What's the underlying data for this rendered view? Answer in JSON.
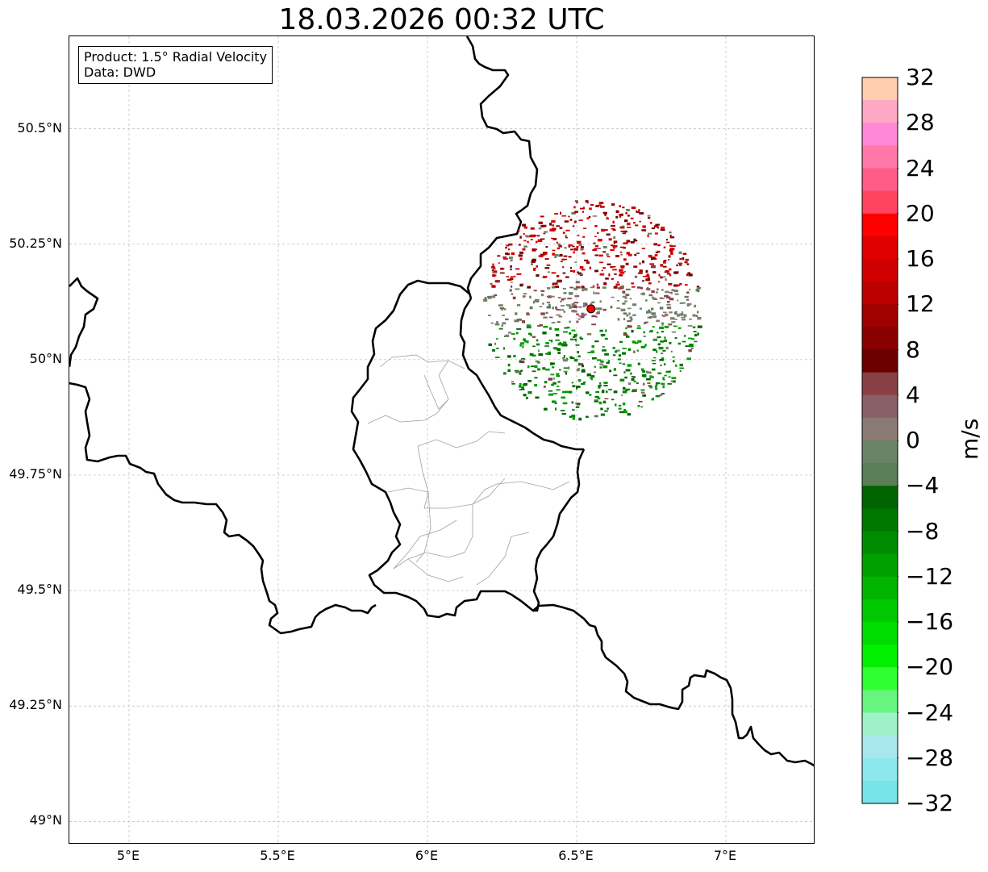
{
  "title": "18.03.2026 00:32 UTC",
  "info_box": {
    "product": "Product: 1.5° Radial Velocity",
    "source": "Data: DWD"
  },
  "map": {
    "lon_range": [
      4.8,
      7.3
    ],
    "lat_range": [
      48.95,
      50.7
    ],
    "lat_ticks": [
      {
        "value": 50.5,
        "label": "50.5°N"
      },
      {
        "value": 50.25,
        "label": "50.25°N"
      },
      {
        "value": 50.0,
        "label": "50°N"
      },
      {
        "value": 49.75,
        "label": "49.75°N"
      },
      {
        "value": 49.5,
        "label": "49.5°N"
      },
      {
        "value": 49.25,
        "label": "49.25°N"
      },
      {
        "value": 49.0,
        "label": "49°N"
      }
    ],
    "lon_ticks": [
      {
        "value": 5.0,
        "label": "5°E"
      },
      {
        "value": 5.5,
        "label": "5.5°E"
      },
      {
        "value": 6.0,
        "label": "6°E"
      },
      {
        "value": 6.5,
        "label": "6.5°E"
      },
      {
        "value": 7.0,
        "label": "7°E"
      }
    ],
    "gridlines": true,
    "radar_site": {
      "lon": 6.548,
      "lat": 50.11,
      "color": "#ff0000"
    },
    "echo_radius_deg_lat": 0.24,
    "colors": {
      "border": "#000000",
      "admin": "#a0a0a0",
      "grid": "#bbbbbb"
    }
  },
  "colorbar": {
    "label": "m/s",
    "vmin": -32,
    "vmax": 32,
    "ticks": [
      {
        "value": 32,
        "label": "32"
      },
      {
        "value": 28,
        "label": "28"
      },
      {
        "value": 24,
        "label": "24"
      },
      {
        "value": 20,
        "label": "20"
      },
      {
        "value": 16,
        "label": "16"
      },
      {
        "value": 12,
        "label": "12"
      },
      {
        "value": 8,
        "label": "8"
      },
      {
        "value": 4,
        "label": "4"
      },
      {
        "value": 0,
        "label": "0"
      },
      {
        "value": -4,
        "label": "−4"
      },
      {
        "value": -8,
        "label": "−8"
      },
      {
        "value": -12,
        "label": "−12"
      },
      {
        "value": -16,
        "label": "−16"
      },
      {
        "value": -20,
        "label": "−20"
      },
      {
        "value": -24,
        "label": "−24"
      },
      {
        "value": -28,
        "label": "−28"
      },
      {
        "value": -32,
        "label": "−32"
      }
    ],
    "colors_top_to_bottom": [
      "#ffcfb0",
      "#ffa8c4",
      "#ff88d6",
      "#ff78a8",
      "#ff5c88",
      "#ff4460",
      "#ff0000",
      "#e00000",
      "#d00000",
      "#bc0000",
      "#a00000",
      "#880000",
      "#6a0000",
      "#884044",
      "#8a6068",
      "#8a7a74",
      "#6a8468",
      "#5a7e58",
      "#006400",
      "#007800",
      "#008c00",
      "#00a000",
      "#00b400",
      "#00c800",
      "#00dc00",
      "#00f000",
      "#30ff30",
      "#66f57e",
      "#9ff2c8",
      "#a8e8ec",
      "#8ce8ec",
      "#76e4e8"
    ]
  }
}
